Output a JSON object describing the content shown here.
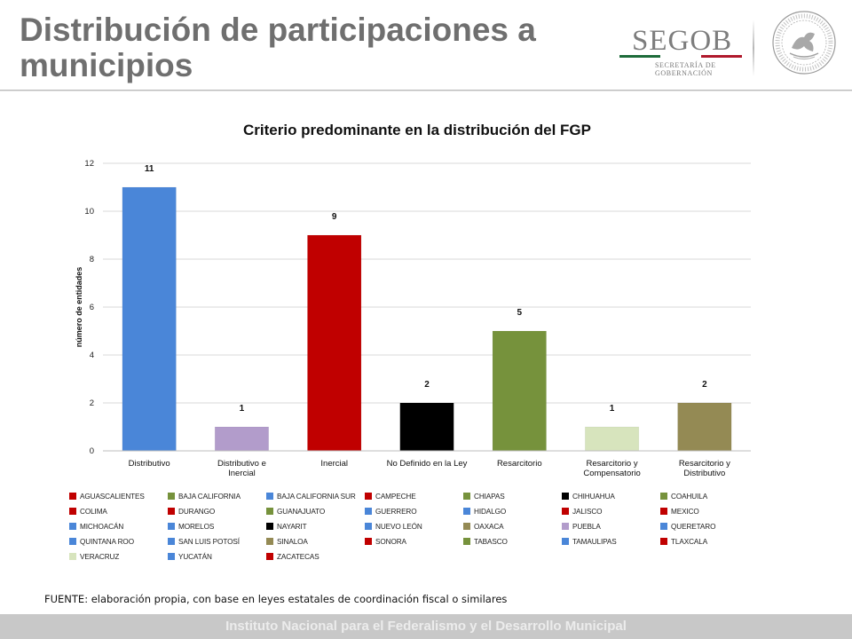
{
  "header": {
    "title": "Distribución de participaciones a municipios",
    "logo": {
      "name": "SEGOB",
      "subtitle_line1": "SECRETARÍA DE",
      "subtitle_line2": "GOBERNACIÓN",
      "stripe_colors": [
        "#1d6b3a",
        "#ffffff",
        "#b0182c"
      ]
    },
    "seal_icon": "mexican-coat-of-arms-seal-icon"
  },
  "chart_data": {
    "type": "bar",
    "title": "Criterio predominante en la distribución del FGP",
    "xlabel": "",
    "ylabel": "número de entidades",
    "ylim": [
      0,
      12
    ],
    "yticks": [
      0,
      2,
      4,
      6,
      8,
      10,
      12
    ],
    "grid": true,
    "categories": [
      "Distributivo",
      "Distributivo e Inercial",
      "Inercial",
      "No Definido en la Ley",
      "Resarcitorio",
      "Resarcitorio y Compensatorio",
      "Resarcitorio y Distributivo"
    ],
    "category_lines": [
      [
        "Distributivo"
      ],
      [
        "Distributivo e",
        "Inercial"
      ],
      [
        "Inercial"
      ],
      [
        "No Definido en la Ley"
      ],
      [
        "Resarcitorio"
      ],
      [
        "Resarcitorio y",
        "Compensatorio"
      ],
      [
        "Resarcitorio y",
        "Distributivo"
      ]
    ],
    "values": [
      11,
      1,
      9,
      2,
      5,
      1,
      2
    ],
    "colors": [
      "#4a86d8",
      "#b29ccb",
      "#c00000",
      "#000000",
      "#76923c",
      "#d7e4bd",
      "#948a54"
    ],
    "legend_placement": "bottom",
    "legend": [
      {
        "label": "AGUASCALIENTES",
        "color": "#c00000"
      },
      {
        "label": "BAJA CALIFORNIA",
        "color": "#76923c"
      },
      {
        "label": "BAJA CALIFORNIA SUR",
        "color": "#4a86d8"
      },
      {
        "label": "CAMPECHE",
        "color": "#c00000"
      },
      {
        "label": "CHIAPAS",
        "color": "#76923c"
      },
      {
        "label": "CHIHUAHUA",
        "color": "#000000"
      },
      {
        "label": "COAHUILA",
        "color": "#76923c"
      },
      {
        "label": "COLIMA",
        "color": "#c00000"
      },
      {
        "label": "DURANGO",
        "color": "#c00000"
      },
      {
        "label": "GUANAJUATO",
        "color": "#76923c"
      },
      {
        "label": "GUERRERO",
        "color": "#4a86d8"
      },
      {
        "label": "HIDALGO",
        "color": "#4a86d8"
      },
      {
        "label": "JALISCO",
        "color": "#c00000"
      },
      {
        "label": "MEXICO",
        "color": "#c00000"
      },
      {
        "label": "MICHOACÁN",
        "color": "#4a86d8"
      },
      {
        "label": "MORELOS",
        "color": "#4a86d8"
      },
      {
        "label": "NAYARIT",
        "color": "#000000"
      },
      {
        "label": "NUEVO LEÓN",
        "color": "#4a86d8"
      },
      {
        "label": "OAXACA",
        "color": "#948a54"
      },
      {
        "label": "PUEBLA",
        "color": "#b29ccb"
      },
      {
        "label": "QUERETARO",
        "color": "#4a86d8"
      },
      {
        "label": "QUINTANA ROO",
        "color": "#4a86d8"
      },
      {
        "label": "SAN LUIS POTOSÍ",
        "color": "#4a86d8"
      },
      {
        "label": "SINALOA",
        "color": "#948a54"
      },
      {
        "label": "SONORA",
        "color": "#c00000"
      },
      {
        "label": "TABASCO",
        "color": "#76923c"
      },
      {
        "label": "TAMAULIPAS",
        "color": "#4a86d8"
      },
      {
        "label": "TLAXCALA",
        "color": "#c00000"
      },
      {
        "label": "VERACRUZ",
        "color": "#d7e4bd"
      },
      {
        "label": "YUCATÁN",
        "color": "#4a86d8"
      },
      {
        "label": "ZACATECAS",
        "color": "#c00000"
      }
    ]
  },
  "source_note": "FUENTE: elaboración propia, con base en leyes estatales de coordinación fiscal o similares",
  "footer": {
    "text": "Instituto Nacional para el Federalismo y el Desarrollo Municipal"
  }
}
